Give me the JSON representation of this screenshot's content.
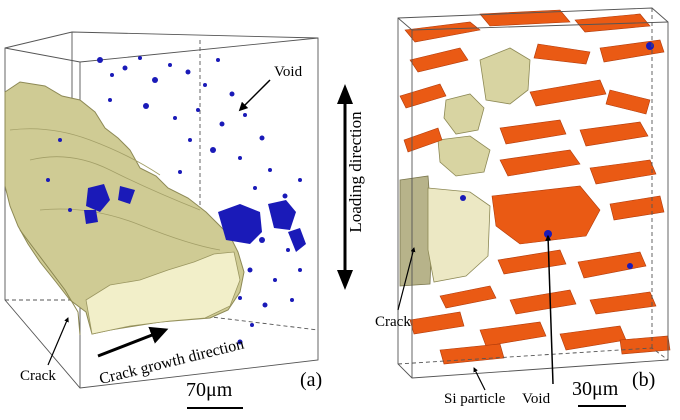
{
  "figure": {
    "panel_a": {
      "void_label": "Void",
      "crack_label": "Crack",
      "growth_label": "Crack growth direction",
      "scale_label": "70μm",
      "panel_tag": "(a)"
    },
    "panel_b": {
      "crack_label": "Crack",
      "si_label": "Si particle",
      "void_label": "Void",
      "scale_label": "30μm",
      "panel_tag": "(b)"
    },
    "center": {
      "loading_label": "Loading direction"
    },
    "colors": {
      "crack": "#d8d4a2",
      "void": "#1a1ab8",
      "si_particle": "#ea5a14"
    }
  }
}
